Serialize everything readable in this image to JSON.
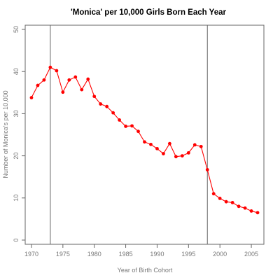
{
  "chart_data": {
    "type": "line",
    "title": "'Monica' per 10,000 Girls Born Each Year",
    "xlabel": "Year of Birth Cohort",
    "ylabel": "Number of Monica's per 10,000",
    "xlim": [
      1969,
      2007
    ],
    "ylim": [
      -1,
      51
    ],
    "xticks": [
      1970,
      1975,
      1980,
      1985,
      1990,
      1995,
      2000,
      2005
    ],
    "yticks": [
      0,
      10,
      20,
      30,
      40,
      50
    ],
    "grid": false,
    "vertical_lines": [
      1973,
      1998
    ],
    "series_color": "#ff0000",
    "reference_line_color": "#666666",
    "x": [
      1970,
      1971,
      1972,
      1973,
      1974,
      1975,
      1976,
      1977,
      1978,
      1979,
      1980,
      1981,
      1982,
      1983,
      1984,
      1985,
      1986,
      1987,
      1988,
      1989,
      1990,
      1991,
      1992,
      1993,
      1994,
      1995,
      1996,
      1997,
      1998,
      1999,
      2000,
      2001,
      2002,
      2003,
      2004,
      2005,
      2006
    ],
    "y": [
      33.8,
      36.7,
      38.0,
      41.0,
      40.2,
      35.1,
      38.0,
      38.7,
      35.7,
      38.2,
      34.1,
      32.3,
      31.7,
      30.2,
      28.5,
      27.0,
      27.1,
      25.8,
      23.3,
      22.7,
      21.7,
      20.5,
      22.9,
      19.8,
      20.0,
      20.7,
      22.6,
      22.2,
      16.7,
      11.0,
      9.9,
      9.1,
      8.9,
      8.0,
      7.6,
      6.9,
      6.5
    ]
  }
}
